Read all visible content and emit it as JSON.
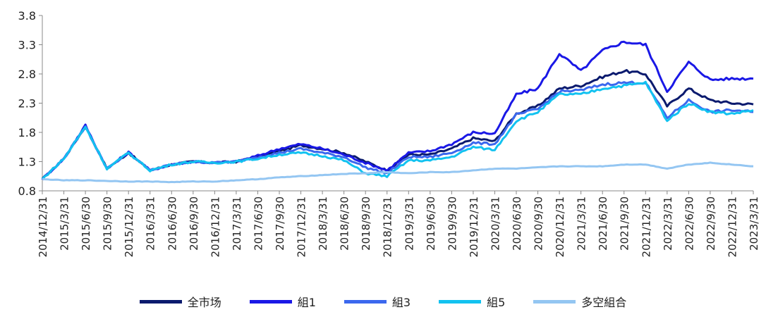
{
  "chart_data": {
    "type": "line",
    "title": "",
    "xlabel": "",
    "ylabel": "",
    "ylim": [
      0.8,
      3.8
    ],
    "y_ticks": [
      "0.8",
      "1.3",
      "1.8",
      "2.3",
      "2.8",
      "3.3",
      "3.8"
    ],
    "x_ticks": [
      "2014/12/31",
      "2015/3/31",
      "2015/6/30",
      "2015/9/30",
      "2015/12/31",
      "2016/3/31",
      "2016/6/30",
      "2016/9/30",
      "2016/12/31",
      "2017/3/31",
      "2017/6/30",
      "2017/9/30",
      "2017/12/31",
      "2018/3/31",
      "2018/6/30",
      "2018/9/30",
      "2018/12/31",
      "2019/3/31",
      "2019/6/30",
      "2019/9/30",
      "2019/12/31",
      "2020/3/31",
      "2020/6/30",
      "2020/9/30",
      "2020/12/31",
      "2021/3/31",
      "2021/6/30",
      "2021/9/30",
      "2021/12/31",
      "2022/3/31",
      "2022/6/30",
      "2022/9/30",
      "2022/12/31",
      "2023/3/31"
    ],
    "grid": false,
    "legend_position": "bottom",
    "series": [
      {
        "name": "全市场",
        "color": "#0a1a6e",
        "values": [
          1.0,
          1.35,
          1.9,
          1.18,
          1.45,
          1.15,
          1.25,
          1.3,
          1.28,
          1.3,
          1.38,
          1.48,
          1.58,
          1.52,
          1.45,
          1.3,
          1.15,
          1.42,
          1.42,
          1.52,
          1.7,
          1.65,
          2.12,
          2.25,
          2.55,
          2.6,
          2.75,
          2.85,
          2.8,
          2.25,
          2.55,
          2.35,
          2.3,
          2.28
        ]
      },
      {
        "name": "組1",
        "color": "#1a18e6",
        "values": [
          1.0,
          1.35,
          1.92,
          1.18,
          1.46,
          1.15,
          1.25,
          1.3,
          1.28,
          1.3,
          1.4,
          1.52,
          1.6,
          1.52,
          1.42,
          1.28,
          1.15,
          1.45,
          1.48,
          1.6,
          1.8,
          1.78,
          2.45,
          2.55,
          3.15,
          2.85,
          3.2,
          3.35,
          3.3,
          2.5,
          3.0,
          2.7,
          2.72,
          2.72
        ]
      },
      {
        "name": "組3",
        "color": "#3b68ee",
        "values": [
          1.0,
          1.35,
          1.9,
          1.18,
          1.45,
          1.15,
          1.25,
          1.3,
          1.28,
          1.3,
          1.38,
          1.45,
          1.52,
          1.45,
          1.38,
          1.2,
          1.1,
          1.38,
          1.38,
          1.45,
          1.62,
          1.6,
          2.1,
          2.2,
          2.5,
          2.52,
          2.62,
          2.65,
          2.65,
          2.05,
          2.35,
          2.15,
          2.18,
          2.15
        ]
      },
      {
        "name": "組5",
        "color": "#12c2f0",
        "values": [
          1.0,
          1.35,
          1.9,
          1.18,
          1.45,
          1.15,
          1.25,
          1.3,
          1.28,
          1.3,
          1.35,
          1.42,
          1.45,
          1.4,
          1.32,
          1.1,
          1.05,
          1.32,
          1.32,
          1.38,
          1.55,
          1.5,
          2.0,
          2.15,
          2.45,
          2.45,
          2.55,
          2.6,
          2.65,
          2.0,
          2.3,
          2.15,
          2.12,
          2.18
        ]
      },
      {
        "name": "多空組合",
        "color": "#94c6f2",
        "values": [
          1.0,
          0.98,
          0.98,
          0.97,
          0.96,
          0.96,
          0.95,
          0.96,
          0.96,
          0.98,
          1.0,
          1.03,
          1.05,
          1.07,
          1.09,
          1.1,
          1.12,
          1.1,
          1.12,
          1.12,
          1.15,
          1.18,
          1.18,
          1.2,
          1.22,
          1.22,
          1.22,
          1.25,
          1.25,
          1.18,
          1.25,
          1.28,
          1.25,
          1.22
        ]
      }
    ]
  }
}
